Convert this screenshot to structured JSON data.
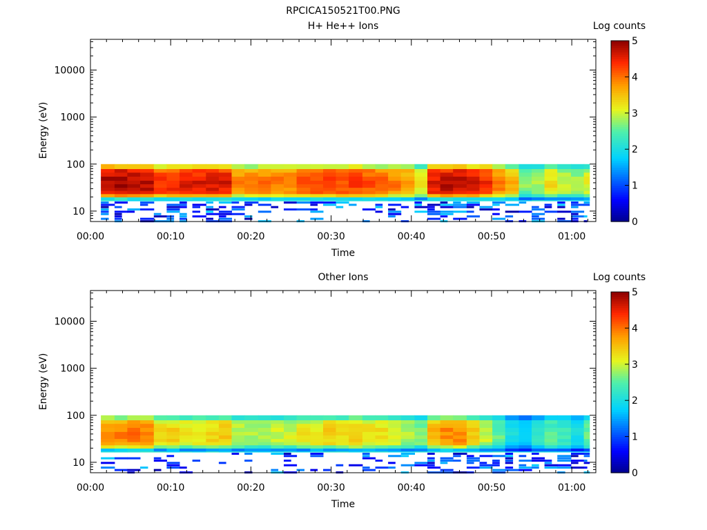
{
  "figure_title": "RPCICA150521T00.PNG",
  "chart_data": [
    {
      "type": "heatmap",
      "title": "H+ He++ Ions",
      "xlabel": "Time",
      "ylabel": "Energy (eV)",
      "x_tick_labels": [
        "00:00",
        "00:10",
        "00:20",
        "00:30",
        "00:40",
        "00:50",
        "01:00"
      ],
      "x_range_minutes": [
        0,
        63
      ],
      "y_scale": "log",
      "y_range": [
        6,
        45000
      ],
      "y_tick_labels": [
        "10",
        "100",
        "1000",
        "10000"
      ],
      "y_tick_values": [
        10,
        100,
        1000,
        10000
      ],
      "colorbar": {
        "label": "Log counts",
        "range": [
          0,
          5
        ],
        "tick_labels": [
          "0",
          "1",
          "2",
          "3",
          "4",
          "5"
        ]
      },
      "data_time_range_minutes": [
        1.3,
        62.2
      ],
      "time_bins_minutes": [
        1.3,
        3.0,
        4.6,
        6.2,
        7.9,
        9.5,
        11.1,
        12.7,
        14.4,
        16.0,
        17.6,
        19.2,
        20.9,
        22.5,
        24.1,
        25.7,
        27.4,
        29.0,
        30.6,
        32.2,
        33.9,
        35.5,
        37.1,
        38.7,
        40.4,
        42.0,
        43.6,
        45.2,
        46.9,
        48.5,
        50.1,
        51.7,
        53.4,
        55.0,
        56.6,
        58.2,
        59.9,
        61.5
      ],
      "energy_edges_eV": [
        17,
        20,
        23.5,
        27.5,
        32,
        38,
        45,
        55,
        67,
        80,
        100
      ],
      "band_peak_log_counts": [
        4.85,
        4.9,
        4.85,
        4.8,
        4.4,
        4.45,
        4.55,
        4.6,
        4.65,
        4.6,
        3.9,
        3.9,
        4.0,
        4.0,
        3.95,
        4.2,
        4.25,
        4.3,
        4.25,
        4.3,
        4.2,
        4.1,
        3.95,
        3.8,
        3.2,
        4.6,
        4.75,
        4.8,
        4.6,
        4.4,
        4.0,
        3.6,
        2.7,
        2.9,
        3.3,
        3.0,
        2.8,
        3.1
      ],
      "low_energy_counts_present": true
    },
    {
      "type": "heatmap",
      "title": "Other Ions",
      "xlabel": "Time",
      "ylabel": "Energy (eV)",
      "x_tick_labels": [
        "00:00",
        "00:10",
        "00:20",
        "00:30",
        "00:40",
        "00:50",
        "01:00"
      ],
      "x_range_minutes": [
        0,
        63
      ],
      "y_scale": "log",
      "y_range": [
        6,
        45000
      ],
      "y_tick_labels": [
        "10",
        "100",
        "1000",
        "10000"
      ],
      "y_tick_values": [
        10,
        100,
        1000,
        10000
      ],
      "colorbar": {
        "label": "Log counts",
        "range": [
          0,
          5
        ],
        "tick_labels": [
          "0",
          "1",
          "2",
          "3",
          "4",
          "5"
        ]
      },
      "data_time_range_minutes": [
        1.3,
        62.2
      ],
      "time_bins_minutes": [
        1.3,
        3.0,
        4.6,
        6.2,
        7.9,
        9.5,
        11.1,
        12.7,
        14.4,
        16.0,
        17.6,
        19.2,
        20.9,
        22.5,
        24.1,
        25.7,
        27.4,
        29.0,
        30.6,
        32.2,
        33.9,
        35.5,
        37.1,
        38.7,
        40.4,
        42.0,
        43.6,
        45.2,
        46.9,
        48.5,
        50.1,
        51.7,
        53.4,
        55.0,
        56.6,
        58.2,
        59.9,
        61.5
      ],
      "energy_edges_eV": [
        17,
        20,
        23.5,
        27.5,
        32,
        38,
        45,
        55,
        67,
        80,
        100
      ],
      "band_peak_log_counts": [
        3.9,
        3.9,
        4.0,
        4.0,
        3.3,
        3.4,
        3.3,
        3.3,
        3.4,
        3.5,
        3.0,
        2.9,
        2.9,
        3.0,
        3.0,
        3.2,
        3.3,
        3.4,
        3.3,
        3.5,
        3.3,
        3.3,
        3.1,
        2.9,
        2.7,
        3.6,
        3.9,
        3.9,
        3.5,
        3.0,
        2.6,
        2.0,
        1.8,
        2.2,
        2.5,
        2.3,
        2.0,
        2.6
      ],
      "low_energy_counts_present": true
    }
  ]
}
